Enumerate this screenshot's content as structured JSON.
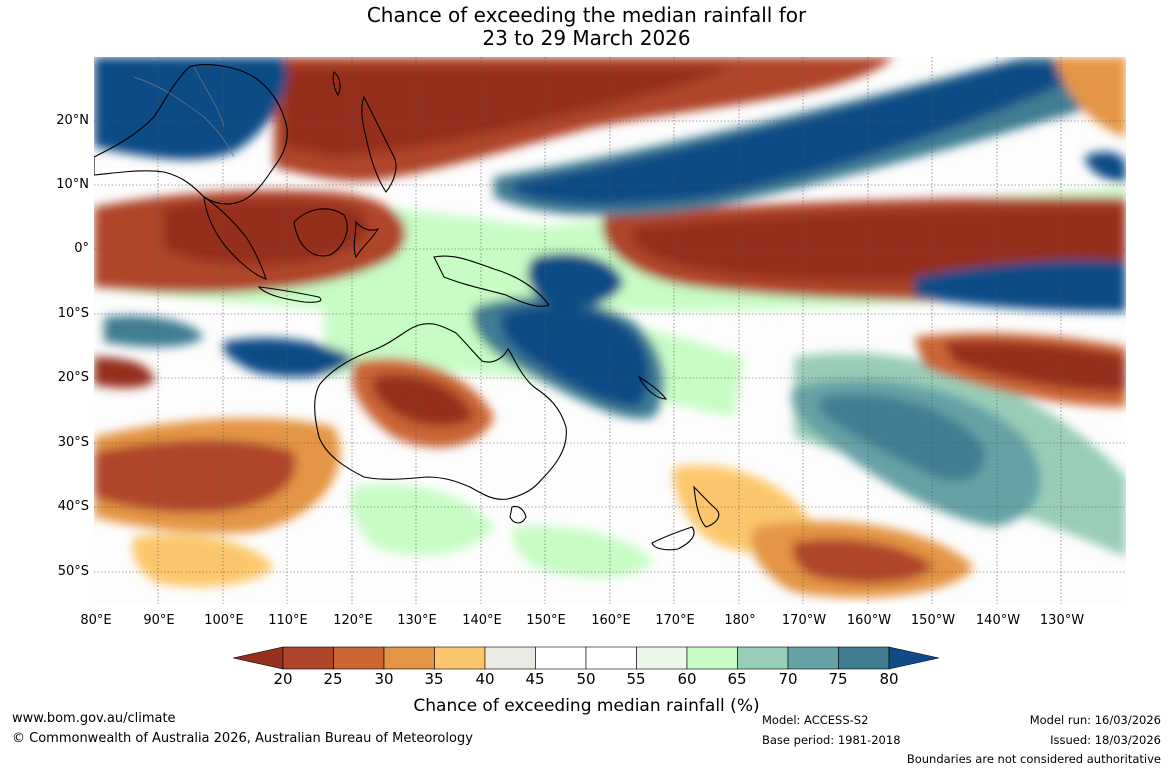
{
  "title": {
    "line1": "Chance of exceeding the median rainfall for",
    "line2": "23 to 29 March 2026"
  },
  "map": {
    "name": "Rainfall outlook map",
    "lat_labels": [
      "20°N",
      "10°N",
      "0°",
      "10°S",
      "20°S",
      "30°S",
      "40°S",
      "50°S"
    ],
    "lon_labels": [
      "80°E",
      "90°E",
      "100°E",
      "110°E",
      "120°E",
      "130°E",
      "140°E",
      "150°E",
      "160°E",
      "170°E",
      "180°",
      "170°W",
      "160°W",
      "150°W",
      "140°W",
      "130°W"
    ]
  },
  "legend": {
    "title": "Chance of exceeding median rainfall (%)",
    "ticks": [
      "20",
      "25",
      "30",
      "35",
      "40",
      "45",
      "50",
      "55",
      "60",
      "65",
      "70",
      "75",
      "80"
    ],
    "colors": [
      "#962f1d",
      "#b0442a",
      "#cb6534",
      "#e49544",
      "#fcc76c",
      "#ebe9e3",
      "#ffffff",
      "#ffffff",
      "#eaf8e8",
      "#c7fcc5",
      "#98ceb7",
      "#66a1a5",
      "#407d93",
      "#114b87"
    ]
  },
  "footer": {
    "website": "www.bom.gov.au/climate",
    "copyright": "© Commonwealth of Australia 2026, Australian Bureau of Meteorology",
    "model": "Model: ACCESS-S2",
    "base_period": "Base period: 1981-2018",
    "model_run": "Model run: 16/03/2026",
    "issued": "Issued: 18/03/2026",
    "disclaimer": "Boundaries are not considered authoritative"
  }
}
